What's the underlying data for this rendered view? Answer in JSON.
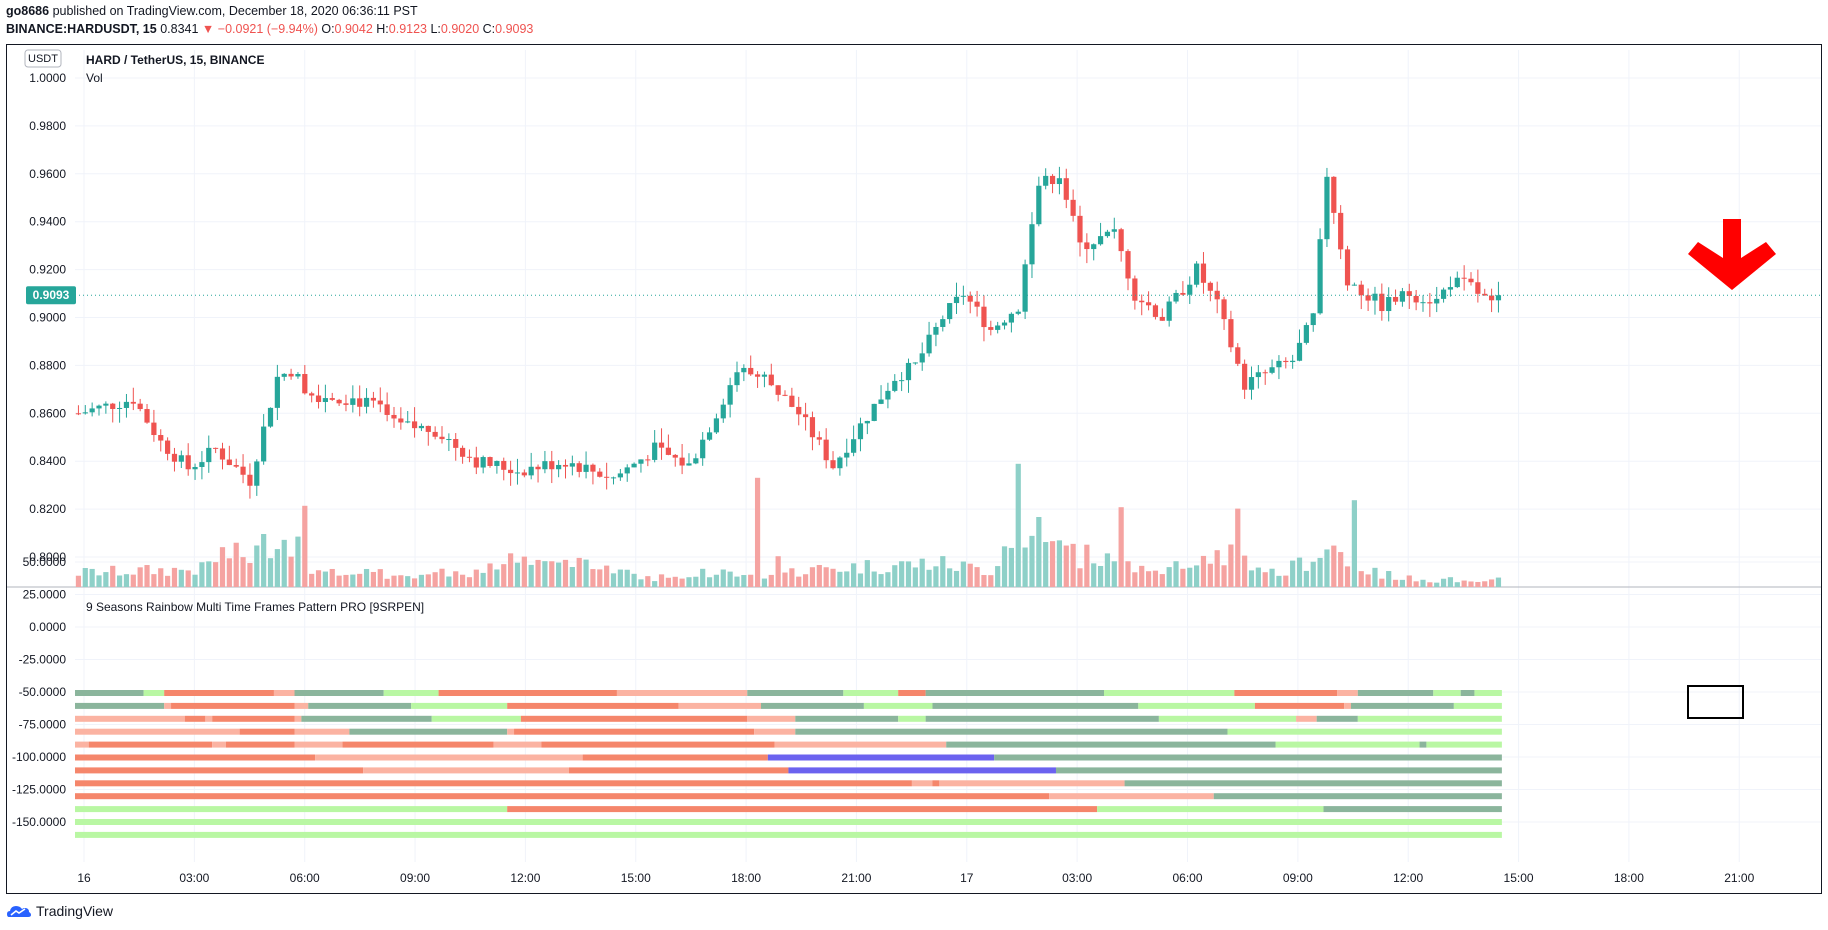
{
  "header": {
    "publisher": "go8686",
    "published_text": "published on TradingView.com, December 18, 2020 06:36:11 PST",
    "symbol": "BINANCE:HARDUSDT, 15",
    "last": "0.8341",
    "change": "−0.0921 (−9.94%)",
    "o_label": "O:",
    "o_value": "0.9042",
    "h_label": "H:",
    "h_value": "0.9123",
    "l_label": "L:",
    "l_value": "0.9020",
    "c_label": "C:",
    "c_value": "0.9093"
  },
  "pane": {
    "currency_badge": "USDT",
    "title": "HARD / TetherUS, 15, BINANCE",
    "vol_label": "Vol",
    "price_badge": "0.9093",
    "indicator_title": "9 Seasons Rainbow Multi Time Frames Pattern PRO [9SRPEN]"
  },
  "footer": {
    "brand": "TradingView"
  },
  "colors": {
    "up": "#26a69a",
    "down": "#ef5350",
    "vol_up": "#8ed0c8",
    "vol_down": "#f5a3a1",
    "arrow": "#ff0000",
    "strong_bear": "#f5866b",
    "weak_bear": "#fbb3a2",
    "weak_bull": "#b9f7a3",
    "strong_bull": "#8bb59c",
    "special": "#6b62ef"
  },
  "chart_data": [
    {
      "type": "candlestick",
      "series_name": "HARD / TetherUS, 15, BINANCE",
      "ylim": [
        0.8,
        1.0
      ],
      "yticks": [
        "1.0000",
        "0.9800",
        "0.9600",
        "0.9400",
        "0.9200",
        "0.9000",
        "0.8800",
        "0.8600",
        "0.8400",
        "0.8200",
        "0.8000"
      ],
      "xticks": [
        "16",
        "03:00",
        "06:00",
        "09:00",
        "12:00",
        "15:00",
        "18:00",
        "21:00",
        "17",
        "03:00",
        "06:00",
        "09:00",
        "12:00",
        "15:00",
        "18:00",
        "21:00"
      ],
      "last_price": 0.9093,
      "anchor_points": [
        [
          0,
          0.86
        ],
        [
          8,
          0.866
        ],
        [
          12,
          0.848
        ],
        [
          16,
          0.837
        ],
        [
          20,
          0.845
        ],
        [
          25,
          0.832
        ],
        [
          29,
          0.875
        ],
        [
          31,
          0.878
        ],
        [
          34,
          0.868
        ],
        [
          40,
          0.866
        ],
        [
          44,
          0.862
        ],
        [
          46,
          0.855
        ],
        [
          52,
          0.853
        ],
        [
          58,
          0.84
        ],
        [
          64,
          0.836
        ],
        [
          71,
          0.84
        ],
        [
          78,
          0.833
        ],
        [
          84,
          0.845
        ],
        [
          89,
          0.838
        ],
        [
          93,
          0.86
        ],
        [
          96,
          0.878
        ],
        [
          100,
          0.875
        ],
        [
          105,
          0.86
        ],
        [
          110,
          0.838
        ],
        [
          114,
          0.855
        ],
        [
          119,
          0.875
        ],
        [
          122,
          0.88
        ],
        [
          126,
          0.9
        ],
        [
          129,
          0.91
        ],
        [
          133,
          0.895
        ],
        [
          137,
          0.905
        ],
        [
          140,
          0.955
        ],
        [
          143,
          0.96
        ],
        [
          146,
          0.93
        ],
        [
          151,
          0.935
        ],
        [
          154,
          0.91
        ],
        [
          158,
          0.9
        ],
        [
          163,
          0.92
        ],
        [
          166,
          0.905
        ],
        [
          170,
          0.872
        ],
        [
          174,
          0.878
        ],
        [
          177,
          0.882
        ],
        [
          180,
          0.9
        ],
        [
          182,
          0.96
        ],
        [
          185,
          0.915
        ],
        [
          190,
          0.905
        ],
        [
          194,
          0.91
        ],
        [
          198,
          0.907
        ],
        [
          200,
          0.915
        ],
        [
          203,
          0.913
        ],
        [
          206,
          0.905
        ],
        [
          207,
          0.9093
        ]
      ],
      "volume_profile": [
        [
          0,
          0.12
        ],
        [
          18,
          0.15
        ],
        [
          21,
          0.28
        ],
        [
          25,
          0.25
        ],
        [
          29,
          0.45
        ],
        [
          30,
          0.4
        ],
        [
          33,
          0.12
        ],
        [
          50,
          0.1
        ],
        [
          58,
          0.14
        ],
        [
          64,
          0.22
        ],
        [
          78,
          0.16
        ],
        [
          83,
          0.08
        ],
        [
          93,
          0.12
        ],
        [
          99,
          0.1
        ],
        [
          110,
          0.16
        ],
        [
          125,
          0.2
        ],
        [
          133,
          0.14
        ],
        [
          137,
          0.55
        ],
        [
          143,
          0.3
        ],
        [
          150,
          0.22
        ],
        [
          158,
          0.14
        ],
        [
          163,
          0.18
        ],
        [
          167,
          0.3
        ],
        [
          175,
          0.1
        ],
        [
          183,
          0.35
        ],
        [
          186,
          0.15
        ],
        [
          195,
          0.06
        ],
        [
          207,
          0.06
        ]
      ],
      "volume_spikes": [
        [
          32,
          0.36
        ],
        [
          33,
          0.58
        ],
        [
          99,
          0.78
        ],
        [
          102,
          0.22
        ],
        [
          137,
          0.88
        ],
        [
          140,
          0.5
        ],
        [
          152,
          0.57
        ],
        [
          169,
          0.56
        ],
        [
          186,
          0.62
        ]
      ]
    },
    {
      "type": "heatmap",
      "series_name": "9 Seasons Rainbow Multi Time Frames Pattern PRO [9SRPEN]",
      "ylim": [
        -150,
        50
      ],
      "yticks": [
        "50.0000",
        "25.0000",
        "0.0000",
        "-25.0000",
        "-50.0000",
        "-75.0000",
        "-100.0000",
        "-125.0000",
        "-150.0000"
      ],
      "state_legend": [
        "strong_bear",
        "weak_bear",
        "weak_bull",
        "strong_bull",
        "special"
      ],
      "bar_count": 208,
      "rows": [
        [
          [
            "strong_bull",
            0,
            10
          ],
          [
            "weak_bull",
            10,
            13
          ],
          [
            "strong_bear",
            13,
            29
          ],
          [
            "weak_bear",
            29,
            32
          ],
          [
            "strong_bull",
            32,
            45
          ],
          [
            "weak_bull",
            45,
            53
          ],
          [
            "strong_bear",
            53,
            79
          ],
          [
            "weak_bear",
            79,
            98
          ],
          [
            "strong_bull",
            98,
            112
          ],
          [
            "weak_bull",
            112,
            120
          ],
          [
            "strong_bear",
            120,
            124
          ],
          [
            "strong_bull",
            124,
            150
          ],
          [
            "weak_bull",
            150,
            169
          ],
          [
            "strong_bear",
            169,
            184
          ],
          [
            "weak_bear",
            184,
            187
          ],
          [
            "strong_bull",
            187,
            198
          ],
          [
            "weak_bull",
            198,
            202
          ],
          [
            "strong_bull",
            202,
            204
          ],
          [
            "weak_bull",
            204,
            208
          ]
        ],
        [
          [
            "strong_bull",
            0,
            13
          ],
          [
            "weak_bear",
            13,
            14
          ],
          [
            "strong_bear",
            14,
            32
          ],
          [
            "weak_bear",
            32,
            34
          ],
          [
            "strong_bull",
            34,
            49
          ],
          [
            "weak_bull",
            49,
            63
          ],
          [
            "strong_bear",
            63,
            88
          ],
          [
            "weak_bear",
            88,
            100
          ],
          [
            "strong_bull",
            100,
            115
          ],
          [
            "weak_bull",
            115,
            125
          ],
          [
            "strong_bull",
            125,
            155
          ],
          [
            "weak_bull",
            155,
            172
          ],
          [
            "strong_bear",
            172,
            185
          ],
          [
            "weak_bear",
            185,
            186
          ],
          [
            "strong_bull",
            186,
            201
          ],
          [
            "weak_bull",
            201,
            208
          ]
        ],
        [
          [
            "weak_bear",
            0,
            16
          ],
          [
            "strong_bear",
            16,
            19
          ],
          [
            "weak_bear",
            19,
            20
          ],
          [
            "strong_bear",
            20,
            32
          ],
          [
            "weak_bear",
            32,
            33
          ],
          [
            "strong_bull",
            33,
            52
          ],
          [
            "weak_bull",
            52,
            65
          ],
          [
            "strong_bear",
            65,
            98
          ],
          [
            "weak_bear",
            98,
            105
          ],
          [
            "strong_bull",
            105,
            120
          ],
          [
            "weak_bull",
            120,
            124
          ],
          [
            "strong_bull",
            124,
            158
          ],
          [
            "weak_bull",
            158,
            178
          ],
          [
            "weak_bear",
            178,
            181
          ],
          [
            "strong_bull",
            181,
            187
          ],
          [
            "weak_bull",
            187,
            208
          ]
        ],
        [
          [
            "weak_bear",
            0,
            24
          ],
          [
            "strong_bear",
            24,
            32
          ],
          [
            "weak_bear",
            32,
            40
          ],
          [
            "strong_bull",
            40,
            63
          ],
          [
            "weak_bear",
            63,
            64
          ],
          [
            "strong_bear",
            64,
            99
          ],
          [
            "weak_bear",
            99,
            105
          ],
          [
            "strong_bull",
            105,
            168
          ],
          [
            "weak_bull",
            168,
            208
          ]
        ],
        [
          [
            "weak_bear",
            0,
            2
          ],
          [
            "strong_bear",
            2,
            20
          ],
          [
            "weak_bear",
            20,
            22
          ],
          [
            "strong_bear",
            22,
            32
          ],
          [
            "weak_bear",
            32,
            39
          ],
          [
            "strong_bear",
            39,
            61
          ],
          [
            "weak_bear",
            61,
            68
          ],
          [
            "strong_bear",
            68,
            102
          ],
          [
            "weak_bear",
            102,
            127
          ],
          [
            "strong_bull",
            127,
            175
          ],
          [
            "weak_bull",
            175,
            196
          ],
          [
            "strong_bull",
            196,
            197
          ],
          [
            "weak_bull",
            197,
            208
          ]
        ],
        [
          [
            "strong_bear",
            0,
            35
          ],
          [
            "weak_bear",
            35,
            74
          ],
          [
            "strong_bear",
            74,
            101
          ],
          [
            "special",
            101,
            134
          ],
          [
            "strong_bull",
            134,
            208
          ]
        ],
        [
          [
            "strong_bear",
            0,
            42
          ],
          [
            "weak_bear",
            42,
            72
          ],
          [
            "strong_bear",
            72,
            104
          ],
          [
            "special",
            104,
            143
          ],
          [
            "strong_bull",
            143,
            208
          ]
        ],
        [
          [
            "strong_bear",
            0,
            122
          ],
          [
            "weak_bear",
            122,
            125
          ],
          [
            "strong_bear",
            125,
            126
          ],
          [
            "weak_bear",
            126,
            153
          ],
          [
            "strong_bull",
            153,
            208
          ]
        ],
        [
          [
            "strong_bear",
            0,
            142
          ],
          [
            "weak_bear",
            142,
            166
          ],
          [
            "strong_bull",
            166,
            208
          ]
        ],
        [
          [
            "weak_bull",
            0,
            63
          ],
          [
            "strong_bear",
            63,
            149
          ],
          [
            "weak_bull",
            149,
            182
          ],
          [
            "strong_bull",
            182,
            208
          ]
        ],
        [
          [
            "weak_bull",
            0,
            208
          ]
        ],
        [
          [
            "weak_bull",
            0,
            208
          ]
        ]
      ]
    }
  ]
}
